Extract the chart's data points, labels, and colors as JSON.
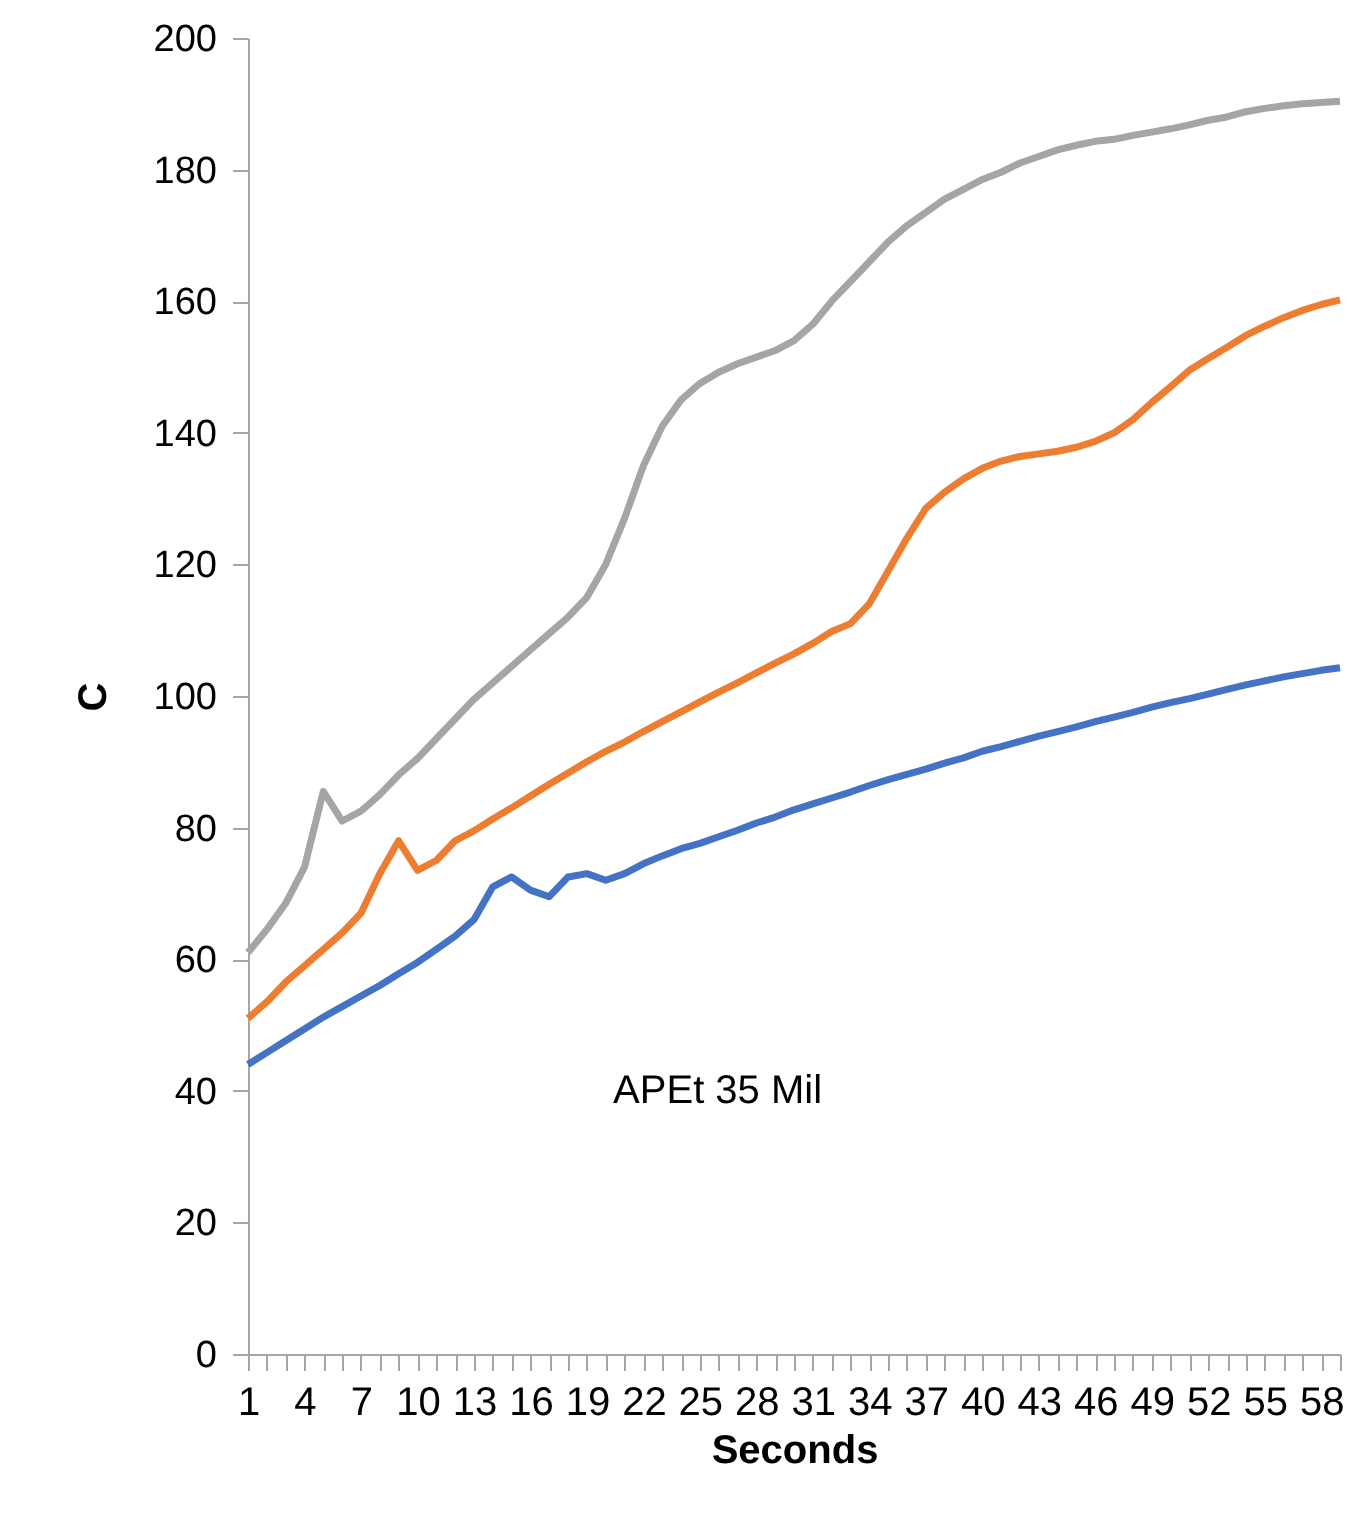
{
  "chart_data": {
    "type": "line",
    "xlabel": "Seconds",
    "ylabel": "C",
    "categories": [
      "1",
      null,
      null,
      "4",
      null,
      null,
      "7",
      null,
      null,
      "10",
      null,
      null,
      "13",
      null,
      null,
      "16",
      null,
      null,
      "19",
      null,
      null,
      "22",
      null,
      null,
      "25",
      null,
      null,
      "28",
      null,
      null,
      "31",
      null,
      null,
      "34",
      null,
      null,
      "37",
      null,
      null,
      "40",
      null,
      null,
      "43",
      null,
      null,
      "46",
      null,
      null,
      "49",
      null,
      null,
      "52",
      null,
      null,
      "55",
      null,
      null,
      "58",
      null
    ],
    "series": [
      {
        "color": "#4472c4",
        "values": [
          44,
          45.8,
          47.6,
          49.4,
          51.2,
          52.8,
          54.4,
          56,
          57.8,
          59.5,
          61.5,
          63.5,
          66,
          71,
          72.5,
          70.5,
          69.5,
          72.5,
          73,
          72,
          73,
          74.5,
          75.7,
          76.8,
          77.6,
          78.6,
          79.6,
          80.7,
          81.6,
          82.7,
          83.6,
          84.5,
          85.4,
          86.4,
          87.3,
          88.1,
          88.9,
          89.8,
          90.6,
          91.6,
          92.3,
          93.1,
          93.9,
          94.6,
          95.3,
          96.1,
          96.8,
          97.5,
          98.3,
          99,
          99.6,
          100.3,
          101,
          101.7,
          102.3,
          102.9,
          103.4,
          103.9,
          104.3
        ]
      },
      {
        "color": "#ed7d31",
        "values": [
          51,
          53.5,
          56.5,
          59,
          61.5,
          64,
          67,
          73,
          78,
          73.5,
          75,
          78,
          79.5,
          81.3,
          83,
          84.8,
          86.6,
          88.3,
          90,
          91.6,
          93,
          94.6,
          96.1,
          97.6,
          99.1,
          100.6,
          102,
          103.5,
          105,
          106.4,
          108,
          109.8,
          111,
          114,
          119,
          124,
          128.5,
          131,
          133,
          134.6,
          135.7,
          136.4,
          136.8,
          137.2,
          137.8,
          138.7,
          140,
          142,
          144.6,
          147,
          149.5,
          151.3,
          153,
          154.8,
          156.2,
          157.5,
          158.6,
          159.5,
          160.2
        ]
      },
      {
        "color": "#a5a5a5",
        "values": [
          61,
          64.5,
          68.5,
          74,
          85.5,
          81,
          82.5,
          85,
          88,
          90.5,
          93.5,
          96.5,
          99.5,
          102,
          104.5,
          107,
          109.5,
          112,
          115,
          120,
          127,
          135,
          141,
          145,
          147.5,
          149.2,
          150.5,
          151.5,
          152.5,
          154,
          156.5,
          160,
          163,
          166,
          169,
          171.5,
          173.5,
          175.5,
          177,
          178.5,
          179.6,
          181,
          182,
          183,
          183.7,
          184.3,
          184.6,
          185.2,
          185.7,
          186.2,
          186.8,
          187.5,
          188,
          188.8,
          189.3,
          189.7,
          190,
          190.2,
          190.4
        ]
      }
    ],
    "ylim": [
      0,
      200
    ],
    "yticks": [
      0,
      20,
      40,
      60,
      80,
      100,
      120,
      140,
      160,
      180,
      200
    ],
    "grid": false,
    "marker": "none",
    "line_style": "solid",
    "annotations": [
      "APEt 35 Mil"
    ]
  }
}
